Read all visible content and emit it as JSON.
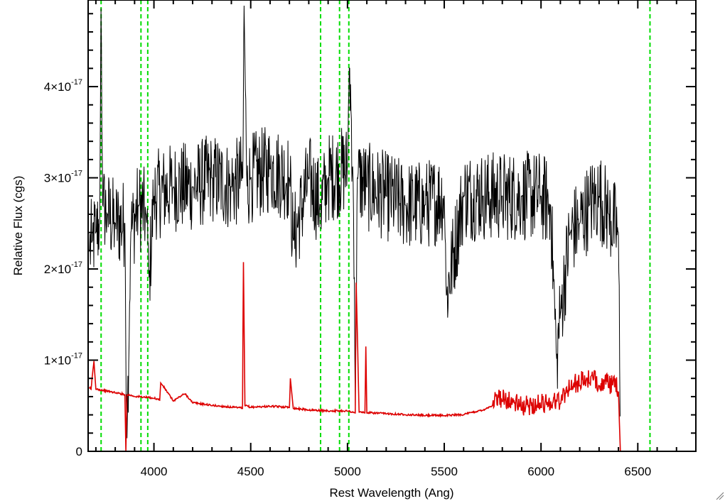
{
  "chart_data": {
    "type": "line",
    "xlabel": "Rest Wavelength (Ang)",
    "ylabel": "Relative Flux (cgs)",
    "xlim": [
      3660,
      6800
    ],
    "ylim": [
      0,
      4.95e-17
    ],
    "x_ticks": [
      4000,
      4500,
      5000,
      5500,
      6000,
      6500
    ],
    "x_tick_labels": [
      "4000",
      "4500",
      "5000",
      "5500",
      "6000",
      "6500"
    ],
    "y_ticks": [
      0,
      1e-17,
      2e-17,
      3e-17,
      4e-17
    ],
    "y_tick_labels": [
      {
        "mantissa": "0",
        "exp": ""
      },
      {
        "mantissa": "1×10",
        "exp": "-17"
      },
      {
        "mantissa": "2×10",
        "exp": "-17"
      },
      {
        "mantissa": "3×10",
        "exp": "-17"
      },
      {
        "mantissa": "4×10",
        "exp": "-17"
      }
    ],
    "grid": false,
    "reference_lines": {
      "color": "#00dd00",
      "style": "dashed",
      "x": [
        3727,
        3933,
        3968,
        4861,
        4959,
        5007,
        6563
      ]
    },
    "series": [
      {
        "color": "#000000",
        "sampling": "control points of a noisy spectrum",
        "x": [
          3665,
          3680,
          3700,
          3720,
          3727,
          3735,
          3760,
          3800,
          3850,
          3860,
          3880,
          3920,
          3960,
          3975,
          4000,
          4100,
          4200,
          4300,
          4400,
          4460,
          4465,
          4480,
          4500,
          4600,
          4700,
          4720,
          4800,
          4860,
          4900,
          5000,
          5010,
          5030,
          5040,
          5050,
          5100,
          5200,
          5300,
          5400,
          5500,
          5510,
          5600,
          5700,
          5800,
          5900,
          6000,
          6050,
          6080,
          6100,
          6150,
          6200,
          6250,
          6300,
          6350,
          6400,
          6410
        ],
        "y": [
          2.2e-17,
          2.3e-17,
          2.4e-17,
          2.5e-17,
          5e-17,
          2.7e-17,
          2.6e-17,
          2.5e-17,
          2.5e-17,
          5e-19,
          2.4e-17,
          2.7e-17,
          2.6e-17,
          1.9e-17,
          2.8e-17,
          2.9e-17,
          2.9e-17,
          3e-17,
          2.9e-17,
          3e-17,
          5e-17,
          2.9e-17,
          3e-17,
          3.1e-17,
          3e-17,
          2.3e-17,
          3e-17,
          2.7e-17,
          3e-17,
          3.1e-17,
          4.3e-17,
          2.9e-17,
          5e-18,
          3e-17,
          2.9e-17,
          2.8e-17,
          2.7e-17,
          2.7e-17,
          2.8e-17,
          1.7e-17,
          2.8e-17,
          2.8e-17,
          2.8e-17,
          2.8e-17,
          2.8e-17,
          2.7e-17,
          1e-17,
          1.5e-17,
          2.4e-17,
          2.5e-17,
          2.7e-17,
          2.8e-17,
          2.6e-17,
          2.4e-17,
          0.0
        ]
      },
      {
        "color": "#dd0000",
        "sampling": "control points of the error spectrum",
        "x": [
          3665,
          3675,
          3690,
          3700,
          3800,
          3850,
          3855,
          3860,
          3900,
          4000,
          4030,
          4035,
          4100,
          4160,
          4200,
          4300,
          4400,
          4458,
          4462,
          4470,
          4500,
          4600,
          4700,
          4705,
          4720,
          4800,
          4900,
          5000,
          5040,
          5045,
          5060,
          5090,
          5095,
          5100,
          5200,
          5300,
          5400,
          5500,
          5600,
          5700,
          5800,
          5900,
          6000,
          6100,
          6150,
          6200,
          6250,
          6300,
          6350,
          6400,
          6410,
          6800
        ],
        "y": [
          7e-18,
          6.8e-18,
          9.9e-18,
          6.8e-18,
          6.4e-18,
          6.2e-18,
          0.0,
          6.2e-18,
          6e-18,
          5.8e-18,
          5.6e-18,
          7.5e-18,
          5.5e-18,
          6.3e-18,
          5.3e-18,
          5e-18,
          4.8e-18,
          4.7e-18,
          2.18e-17,
          5e-18,
          4.8e-18,
          4.9e-18,
          4.8e-18,
          8e-18,
          4.7e-18,
          4.5e-18,
          4.4e-18,
          4.4e-18,
          4.2e-18,
          1.85e-17,
          4.3e-18,
          4.2e-18,
          1.15e-17,
          4.2e-18,
          4.1e-18,
          4e-18,
          3.9e-18,
          3.9e-18,
          4e-18,
          4.5e-18,
          5.5e-18,
          4.5e-18,
          4.8e-18,
          5.2e-18,
          6.8e-18,
          7.2e-18,
          7.5e-18,
          7.2e-18,
          7e-18,
          6.5e-18,
          0.0,
          0.0
        ]
      }
    ]
  }
}
